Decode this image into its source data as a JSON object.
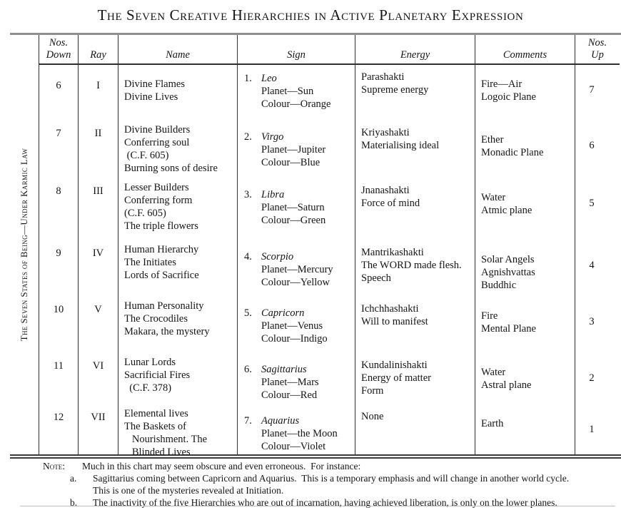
{
  "title": "The Seven Creative Hierarchies in Active Planetary Expression",
  "side_label": "The Seven States of Being—Under Karmic Law",
  "table": {
    "headers": {
      "nos_down": "Nos.\nDown",
      "ray": "Ray",
      "name": "Name",
      "sign": "Sign",
      "energy": "Energy",
      "comments": "Comments",
      "nos_up": "Nos.\nUp"
    },
    "rows": [
      {
        "down": "6",
        "ray": "I",
        "name": [
          "Divine Flames",
          "Divine Lives"
        ],
        "sign_no": "1.",
        "sign_name": "Leo",
        "sign_lines": [
          "Planet—Sun",
          "Colour—Orange"
        ],
        "energy": [
          "Parashakti",
          "Supreme energy"
        ],
        "comments": [
          "Fire—Air",
          "Logoic Plane"
        ],
        "up": "7"
      },
      {
        "down": "7",
        "ray": "II",
        "name": [
          "Divine Builders",
          "Conferring soul",
          " (C.F. 605)",
          "Burning sons of desire"
        ],
        "sign_no": "2.",
        "sign_name": "Virgo",
        "sign_lines": [
          "Planet—Jupiter",
          "Colour—Blue"
        ],
        "energy": [
          "Kriyashakti",
          "Materialising ideal"
        ],
        "comments": [
          "Ether",
          "Monadic Plane"
        ],
        "up": "6"
      },
      {
        "down": "8",
        "ray": "III",
        "name": [
          "Lesser Builders",
          "Conferring form",
          "(C.F. 605)",
          "The triple flowers"
        ],
        "sign_no": "3.",
        "sign_name": "Libra",
        "sign_lines": [
          "Planet—Saturn",
          "Colour—Green"
        ],
        "energy": [
          "Jnanashakti",
          "Force of mind"
        ],
        "comments": [
          "Water",
          "Atmic plane"
        ],
        "up": "5"
      },
      {
        "down": "9",
        "ray": "IV",
        "name": [
          "Human Hierarchy",
          "The Initiates",
          "Lords of Sacrifice"
        ],
        "sign_no": "4.",
        "sign_name": "Scorpio",
        "sign_lines": [
          "Planet—Mercury",
          "Colour—Yellow"
        ],
        "energy": [
          "Mantrikashakti",
          "The WORD made flesh.",
          "Speech"
        ],
        "comments": [
          "Solar Angels",
          "Agnishvattas",
          "Buddhic"
        ],
        "up": "4"
      },
      {
        "down": "10",
        "ray": "V",
        "name": [
          "Human Personality",
          "The Crocodiles",
          "Makara, the mystery"
        ],
        "sign_no": "5.",
        "sign_name": "Capricorn",
        "sign_lines": [
          "Planet—Venus",
          "Colour—Indigo"
        ],
        "energy": [
          "Ichchhashakti",
          "Will to manifest"
        ],
        "comments": [
          "Fire",
          "Mental Plane"
        ],
        "up": "3"
      },
      {
        "down": "11",
        "ray": "VI",
        "name": [
          "Lunar Lords",
          "Sacrificial Fires",
          "  (C.F. 378)"
        ],
        "sign_no": "6.",
        "sign_name": "Sagittarius",
        "sign_lines": [
          "Planet—Mars",
          "Colour—Red"
        ],
        "energy": [
          "Kundalinishakti",
          "Energy of matter",
          "Form"
        ],
        "comments": [
          "Water",
          "Astral plane"
        ],
        "up": "2"
      },
      {
        "down": "12",
        "ray": "VII",
        "name": [
          "Elemental lives",
          "The Baskets of",
          "   Nourishment. The",
          "   Blinded Lives"
        ],
        "sign_no": "7.",
        "sign_name": "Aquarius",
        "sign_lines": [
          "Planet—the Moon",
          "Colour—Violet"
        ],
        "energy": [
          "None"
        ],
        "comments": [
          "Earth"
        ],
        "up": "1"
      }
    ]
  },
  "note": {
    "label": "Note:",
    "intro": "Much in this chart may seem obscure and even erroneous.  For instance:",
    "items": [
      {
        "marker": "a.",
        "text": [
          "Sagittarius coming between Capricorn and Aquarius.  This is a temporary emphasis and will change in another world cycle.",
          "This is one of the mysteries revealed at Initiation."
        ]
      },
      {
        "marker": "b.",
        "text": [
          "The inactivity of the five Hierarchies who are out of incarnation, having achieved liberation, is only on the lower planes."
        ]
      }
    ]
  }
}
